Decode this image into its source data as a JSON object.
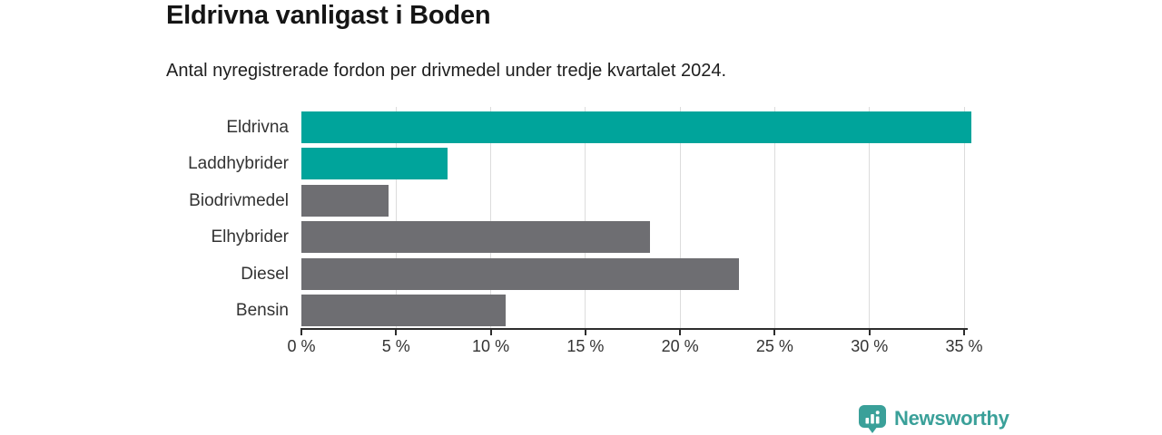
{
  "header": {
    "title": "Eldrivna vanligast i Boden",
    "subtitle": "Antal nyregistrerade fordon per drivmedel under tredje kvartalet 2024."
  },
  "chart_data": {
    "type": "bar",
    "orientation": "horizontal",
    "title": "Eldrivna vanligast i Boden",
    "subtitle": "Antal nyregistrerade fordon per drivmedel under tredje kvartalet 2024.",
    "categories": [
      "Eldrivna",
      "Laddhybrider",
      "Biodrivmedel",
      "Elhybrider",
      "Diesel",
      "Bensin"
    ],
    "values": [
      35.4,
      7.7,
      4.6,
      18.4,
      23.1,
      10.8
    ],
    "unit": "%",
    "xlim": [
      0,
      35
    ],
    "x_ticks": [
      0,
      5,
      10,
      15,
      20,
      25,
      30,
      35
    ],
    "x_tick_labels": [
      "0 %",
      "5 %",
      "10 %",
      "15 %",
      "20 %",
      "25 %",
      "30 %",
      "35 %"
    ],
    "bar_colors": [
      "#00a49b",
      "#00a49b",
      "#6e6e72",
      "#6e6e72",
      "#6e6e72",
      "#6e6e72"
    ],
    "highlight_color": "#00a49b",
    "default_color": "#6e6e72",
    "grid_color": "#dcdcdc",
    "axis_color": "#2d2d2d",
    "grid": "vertical",
    "legend": false
  },
  "footer": {
    "brand": "Newsworthy",
    "brand_color": "#3aa099"
  }
}
